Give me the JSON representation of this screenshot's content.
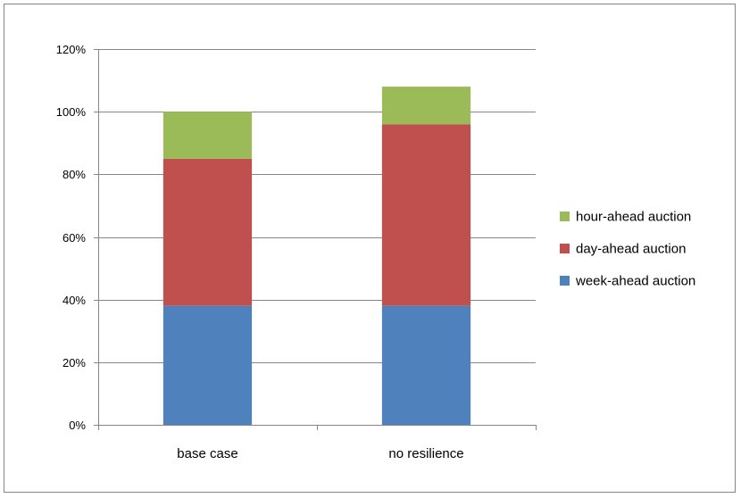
{
  "chart_data": {
    "type": "bar",
    "stacked": true,
    "categories": [
      "base case",
      "no resilience"
    ],
    "series": [
      {
        "name": "week-ahead auction",
        "values": [
          38,
          38
        ],
        "color": "#4F81BD"
      },
      {
        "name": "day-ahead auction",
        "values": [
          47,
          58
        ],
        "color": "#C0504D"
      },
      {
        "name": "hour-ahead auction",
        "values": [
          15,
          12
        ],
        "color": "#9BBB59"
      }
    ],
    "ylim": [
      0,
      120
    ],
    "yticks": [
      "0%",
      "20%",
      "40%",
      "60%",
      "80%",
      "100%",
      "120%"
    ],
    "grid": true,
    "legend_position": "right",
    "legend_order": [
      "hour-ahead auction",
      "day-ahead auction",
      "week-ahead auction"
    ]
  }
}
